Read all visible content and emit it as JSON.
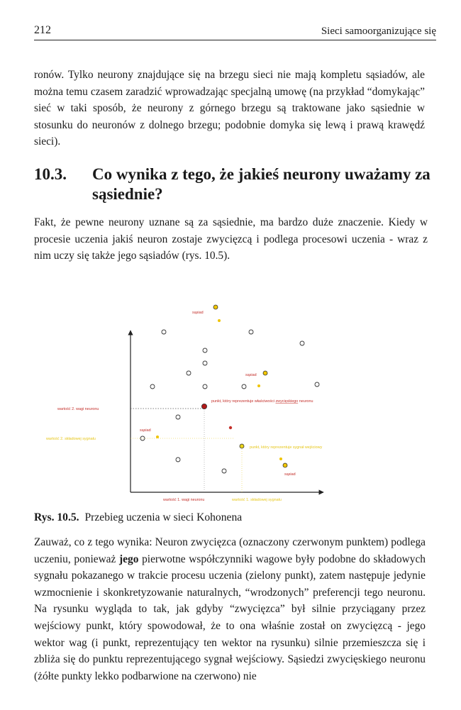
{
  "header": {
    "page_number": "212",
    "running_title": "Sieci samoorganizujące się"
  },
  "paragraph_1": "ronów. Tylko neurony znajdujące się na brzegu sieci nie mają kompletu sąsiadów, ale można temu czasem zaradzić wprowadzając specjalną umowę (na przykład “domykając” sieć w taki sposób, że neurony z górnego brzegu są traktowane jako sąsiednie w stosunku do neuronów z dolnego brzegu; podobnie domyka się lewą i prawą krawędź sieci).",
  "section": {
    "number": "10.3.",
    "title": "Co wynika z tego, że jakieś neurony uważamy za sąsiednie?"
  },
  "paragraph_2": "Fakt, że pewne neurony uznane są za sąsiednie, ma bardzo duże znaczenie. Kiedy w procesie uczenia jakiś neuron zostaje zwycięzcą i podlega procesowi uczenia - wraz z nim uczy się także jego sąsiadów (rys. 10.5).",
  "figure": {
    "labels": {
      "neighbor_1": "sąsiad",
      "neighbor_2": "sąsiad",
      "neighbor_3": "sąsiad",
      "neighbor_4": "sąsiad",
      "winner_point_prefix": "punkt, który reprezentuje właściwości",
      "winner_point_underlined": "zwycięskiego",
      "winner_point_suffix": "neuronu",
      "input_point": "punkt, który reprezentuje sygnał wejściowy",
      "y_weight": "wartość 2. wagi neuronu",
      "y_signal": "wartość 2. składowej sygnału",
      "x_weight": "wartość 1. wagi neuronu",
      "x_signal": "wartość 1. składowej sygnału"
    },
    "colors": {
      "red": "#c4302b",
      "yellow": "#e6c61a",
      "winner": "#b01818",
      "neuron_outline": "#333333"
    }
  },
  "caption": {
    "prefix": "Rys. 10.5.",
    "text": "Przebieg uczenia w sieci Kohonena"
  },
  "paragraph_3": {
    "part1": "Zauważ, co z tego wynika: Neuron zwycięzca (oznaczony czerwonym punktem) podlega uczeniu, ponieważ",
    "bold": "jego",
    "part2": "pierwotne współczynniki wagowe były podobne do składowych sygnału pokazanego w trakcie procesu uczenia (zielony punkt), zatem następuje jedynie wzmocnienie i skonkretyzowanie naturalnych, “wrodzonych” preferencji tego neuronu. Na rysunku wygląda to tak, jak gdyby “zwycięzca” był silnie przyciągany przez wejściowy punkt, który spowodował, że to ona właśnie został on zwycięzcą - jego wektor wag (i punkt, reprezentujący ten wektor na rysunku) silnie przemieszcza się i zbliża się do punktu reprezentującego sygnał wejściowy. Sąsiedzi zwycięskiego neuronu (żółte punkty lekko podbarwione na czerwono) nie"
  }
}
